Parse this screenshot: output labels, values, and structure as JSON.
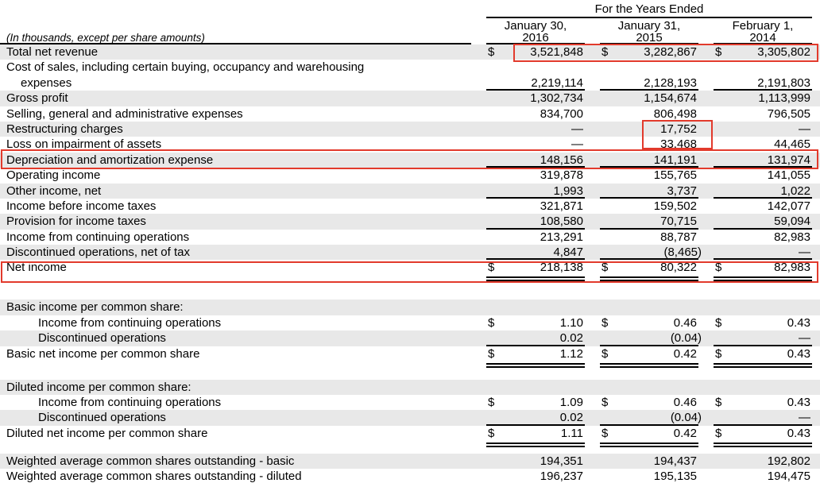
{
  "header": {
    "years_ended_label": "For the Years Ended",
    "units_note": "(In thousands, except per share amounts)",
    "columns": [
      {
        "line1": "January 30,",
        "line2": "2016"
      },
      {
        "line1": "January 31,",
        "line2": "2015"
      },
      {
        "line1": "February 1,",
        "line2": "2014"
      }
    ]
  },
  "rows": [
    {
      "label": "Total net revenue",
      "d": "$",
      "v1": "3,521,848",
      "v2": "3,282,867",
      "v3": "3,305,802"
    },
    {
      "label": "Cost of sales, including certain buying, occupancy and warehousing"
    },
    {
      "label": "expenses",
      "d": "",
      "v1": "2,219,114",
      "v2": "2,128,193",
      "v3": "2,191,803"
    },
    {
      "label": "Gross profit",
      "d": "",
      "v1": "1,302,734",
      "v2": "1,154,674",
      "v3": "1,113,999"
    },
    {
      "label": "Selling, general and administrative expenses",
      "d": "",
      "v1": "834,700",
      "v2": "806,498",
      "v3": "796,505"
    },
    {
      "label": "Restructuring charges",
      "d": "",
      "v1": "—",
      "v2": "17,752",
      "v3": "—"
    },
    {
      "label": "Loss on impairment of assets",
      "d": "",
      "v1": "—",
      "v2": "33,468",
      "v3": "44,465"
    },
    {
      "label": "Depreciation and amortization expense",
      "d": "",
      "v1": "148,156",
      "v2": "141,191",
      "v3": "131,974"
    },
    {
      "label": "Operating income",
      "d": "",
      "v1": "319,878",
      "v2": "155,765",
      "v3": "141,055"
    },
    {
      "label": "Other income, net",
      "d": "",
      "v1": "1,993",
      "v2": "3,737",
      "v3": "1,022"
    },
    {
      "label": "Income before income taxes",
      "d": "",
      "v1": "321,871",
      "v2": "159,502",
      "v3": "142,077"
    },
    {
      "label": "Provision for income taxes",
      "d": "",
      "v1": "108,580",
      "v2": "70,715",
      "v3": "59,094"
    },
    {
      "label": "Income from continuing operations",
      "d": "",
      "v1": "213,291",
      "v2": "88,787",
      "v3": "82,983"
    },
    {
      "label": "Discontinued operations, net of tax",
      "d": "",
      "v1": "4,847",
      "v2": "(8,465)",
      "v3": "—"
    },
    {
      "label": "Net income",
      "d": "$",
      "v1": "218,138",
      "v2": "80,322",
      "v3": "82,983"
    },
    {
      "label": "Basic income per common share:"
    },
    {
      "label": "Income from continuing operations",
      "d": "$",
      "v1": "1.10",
      "v2": "0.46",
      "v3": "0.43"
    },
    {
      "label": "Discontinued operations",
      "d": "",
      "v1": "0.02",
      "v2": "(0.04)",
      "v3": "—"
    },
    {
      "label": "Basic net income per common share",
      "d": "$",
      "v1": "1.12",
      "v2": "0.42",
      "v3": "0.43"
    },
    {
      "label": "Diluted income per common share:"
    },
    {
      "label": "Income from continuing operations",
      "d": "$",
      "v1": "1.09",
      "v2": "0.46",
      "v3": "0.43"
    },
    {
      "label": "Discontinued operations",
      "d": "",
      "v1": "0.02",
      "v2": "(0.04)",
      "v3": "—"
    },
    {
      "label": "Diluted net income per common share",
      "d": "$",
      "v1": "1.11",
      "v2": "0.42",
      "v3": "0.43"
    },
    {
      "label": "Weighted average common shares outstanding - basic",
      "d": "",
      "v1": "194,351",
      "v2": "194,437",
      "v3": "192,802"
    },
    {
      "label": "Weighted average common shares outstanding - diluted",
      "d": "",
      "v1": "196,237",
      "v2": "195,135",
      "v3": "194,475"
    }
  ],
  "annotations": {
    "highlight_color": "#e23a2c",
    "boxes": [
      "total-net-revenue-values",
      "restructuring-and-impairment-fy2015-values",
      "depreciation-and-amortization-row",
      "net-income-row"
    ]
  },
  "colors": {
    "row_shade": "#e8e8e8",
    "rule_line": "#000000",
    "background": "#ffffff"
  }
}
